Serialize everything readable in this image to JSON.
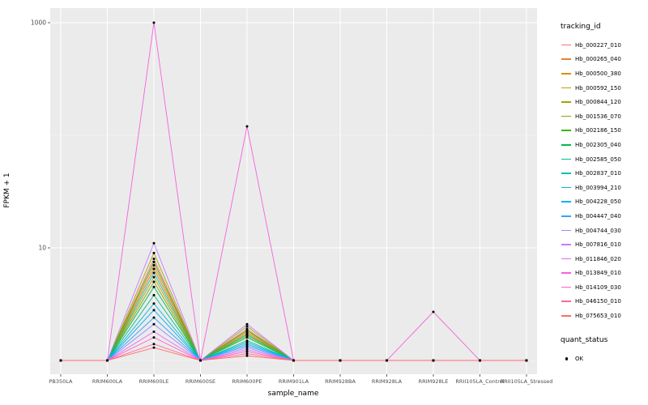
{
  "chart_data": {
    "type": "line",
    "title": "",
    "xlabel": "sample_name",
    "ylabel": "FPKM + 1",
    "y_scale": "log10",
    "legend_position": "right",
    "panel_background": "#EBEBEB",
    "grid_major_color": "#FFFFFF",
    "grid_minor_color": "#F6F6F6",
    "point_color": "#000000",
    "tick_label_color": "#4d4d4d",
    "categories": [
      "PB350LA",
      "RRIM600LA",
      "RRIM600LE",
      "RRIM600SE",
      "RRIM600PE",
      "RRIM901LA",
      "RRIM928BA",
      "RRIM928LA",
      "RRIM928LE",
      "RRII105LA_Control",
      "RRII105LA_Stressed"
    ],
    "y_axis": {
      "breaks": [
        {
          "value": 10,
          "label": "10"
        },
        {
          "value": 1000,
          "label": "1000"
        }
      ],
      "minor_breaks": [
        1,
        100
      ],
      "range": [
        0.75,
        1300
      ]
    },
    "series": [
      {
        "name": "Hb_000227_010",
        "color": "#F8766D",
        "values": [
          1,
          1,
          8,
          1,
          1.9,
          1,
          1,
          1,
          1,
          1,
          1
        ]
      },
      {
        "name": "Hb_000265_040",
        "color": "#EA8331",
        "values": [
          1,
          1,
          7,
          1,
          1.8,
          1,
          1,
          1,
          1,
          1,
          1
        ]
      },
      {
        "name": "Hb_000500_380",
        "color": "#D89000",
        "values": [
          1,
          1,
          6.5,
          1,
          1.75,
          1,
          1,
          1,
          1,
          1,
          1
        ]
      },
      {
        "name": "Hb_000592_150",
        "color": "#C09B00",
        "values": [
          1,
          1,
          5.5,
          1,
          1.7,
          1,
          1,
          1,
          1,
          1,
          1
        ]
      },
      {
        "name": "Hb_000844_120",
        "color": "#A3A500",
        "values": [
          1,
          1,
          9,
          1,
          2.0,
          1,
          1,
          1,
          1,
          1,
          1
        ]
      },
      {
        "name": "Hb_001536_070",
        "color": "#7CAE00",
        "values": [
          1,
          1,
          5,
          1,
          1.65,
          1,
          1,
          1,
          1,
          1,
          1
        ]
      },
      {
        "name": "Hb_002186_150",
        "color": "#39B600",
        "values": [
          1,
          1,
          7.5,
          1,
          1.85,
          1,
          1,
          1,
          1,
          1,
          1
        ]
      },
      {
        "name": "Hb_002305_040",
        "color": "#00BB4E",
        "values": [
          1,
          1,
          4.5,
          1,
          1.6,
          1,
          1,
          1,
          1,
          1,
          1
        ]
      },
      {
        "name": "Hb_002585_050",
        "color": "#00C087",
        "values": [
          1,
          1,
          3.8,
          1,
          1.5,
          1,
          1,
          1,
          1,
          1,
          1
        ]
      },
      {
        "name": "Hb_002837_010",
        "color": "#00C0B2",
        "values": [
          1,
          1,
          6,
          1,
          1.7,
          1,
          1,
          1,
          1,
          1,
          1
        ]
      },
      {
        "name": "Hb_003994_210",
        "color": "#00BCD8",
        "values": [
          1,
          1,
          3.2,
          1,
          1.45,
          1,
          1,
          1,
          1,
          1,
          1
        ]
      },
      {
        "name": "Hb_004228_050",
        "color": "#00B0F6",
        "values": [
          1,
          1,
          2.8,
          1,
          1.4,
          1,
          1,
          1,
          1,
          1,
          1
        ]
      },
      {
        "name": "Hb_004447_040",
        "color": "#35A2FF",
        "values": [
          1,
          1,
          2.4,
          1,
          1.35,
          1,
          1,
          1,
          1,
          1,
          1
        ]
      },
      {
        "name": "Hb_004744_030",
        "color": "#9590FF",
        "values": [
          1,
          1,
          2.1,
          1,
          1.3,
          1,
          1,
          1,
          1,
          1,
          1
        ]
      },
      {
        "name": "Hb_007816_010",
        "color": "#C77CFF",
        "values": [
          1,
          1,
          11,
          1,
          2.1,
          1,
          1,
          1,
          1,
          1,
          1
        ]
      },
      {
        "name": "Hb_011846_020",
        "color": "#E76BF3",
        "values": [
          1,
          1,
          1.8,
          1,
          1.25,
          1,
          1,
          1,
          1,
          1,
          1
        ]
      },
      {
        "name": "Hb_013849_010",
        "color": "#F562DE",
        "values": [
          1,
          1,
          1000,
          1,
          120,
          1,
          1,
          1,
          2.7,
          1,
          1
        ]
      },
      {
        "name": "Hb_014109_030",
        "color": "#FF61C9",
        "values": [
          1,
          1,
          1.6,
          1,
          1.2,
          1,
          1,
          1,
          1,
          1,
          1
        ]
      },
      {
        "name": "Hb_046150_010",
        "color": "#FF689E",
        "values": [
          1,
          1,
          1.4,
          1,
          1.15,
          1,
          1,
          1,
          1,
          1,
          1
        ]
      },
      {
        "name": "Hb_075653_010",
        "color": "#FF6C67",
        "values": [
          1,
          1,
          1.3,
          1,
          1.1,
          1,
          1,
          1,
          1,
          1,
          1
        ]
      }
    ]
  },
  "legend": {
    "tracking_title": "tracking_id",
    "quant_title": "quant_status",
    "quant_label": "OK"
  }
}
